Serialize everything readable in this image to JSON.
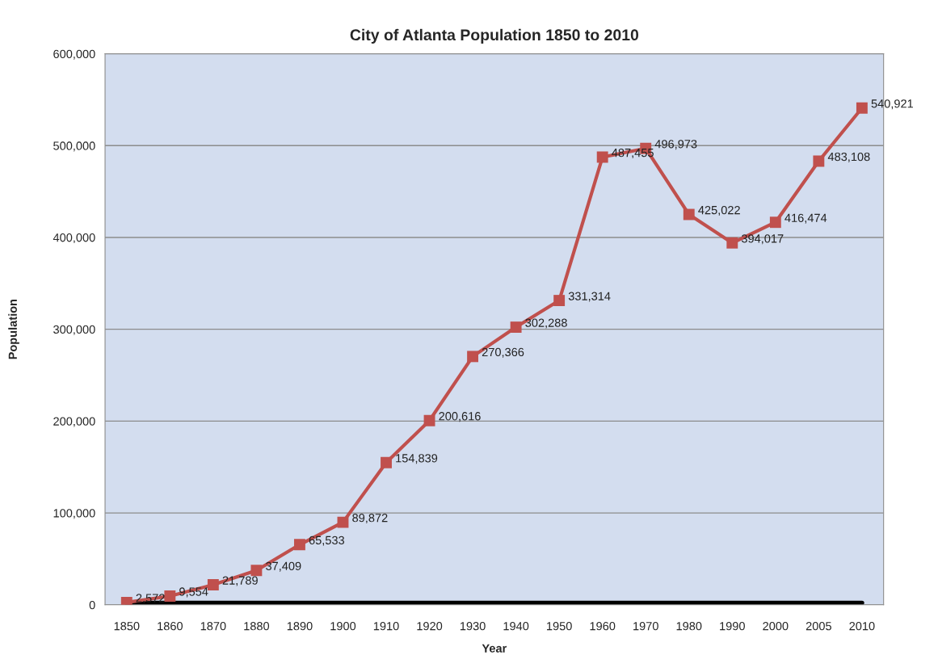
{
  "chart_data": {
    "type": "line",
    "title": "City of Atlanta Population 1850 to 2010",
    "xlabel": "Year",
    "ylabel": "Population",
    "categories": [
      "1850",
      "1860",
      "1870",
      "1880",
      "1890",
      "1900",
      "1910",
      "1920",
      "1930",
      "1940",
      "1950",
      "1960",
      "1970",
      "1980",
      "1990",
      "2000",
      "2005",
      "2010"
    ],
    "series": [
      {
        "color": "#c0504d",
        "values": [
          2572,
          9554,
          21789,
          37409,
          65533,
          89872,
          154839,
          200616,
          270366,
          302288,
          331314,
          487455,
          496973,
          425022,
          394017,
          416474,
          483108,
          540921
        ],
        "marker": "square",
        "value_labels": [
          "2,572",
          "9,554",
          "21,789",
          "37,409",
          "65,533",
          "89,872",
          "154,839",
          "200,616",
          "270,366",
          "302,288",
          "331,314",
          "487,455",
          "496,973",
          "425,022",
          "394,017",
          "416,474",
          "483,108",
          "540,921"
        ]
      },
      {
        "color": "#000000",
        "values": [
          2000,
          2000,
          2000,
          2000,
          2000,
          2000,
          2000,
          2000,
          2000,
          2000,
          2000,
          2000,
          2000,
          2000,
          2000,
          2000,
          2000,
          2000
        ],
        "marker": "none"
      }
    ],
    "ylim": [
      0,
      600000
    ],
    "yticks": [
      {
        "value": 0,
        "label": "0"
      },
      {
        "value": 100000,
        "label": "100,000"
      },
      {
        "value": 200000,
        "label": "200,000"
      },
      {
        "value": 300000,
        "label": "300,000"
      },
      {
        "value": 400000,
        "label": "400,000"
      },
      {
        "value": 500000,
        "label": "500,000"
      },
      {
        "value": 600000,
        "label": "600,000"
      }
    ],
    "grid": "y",
    "legend": false,
    "line_style": "solid"
  }
}
